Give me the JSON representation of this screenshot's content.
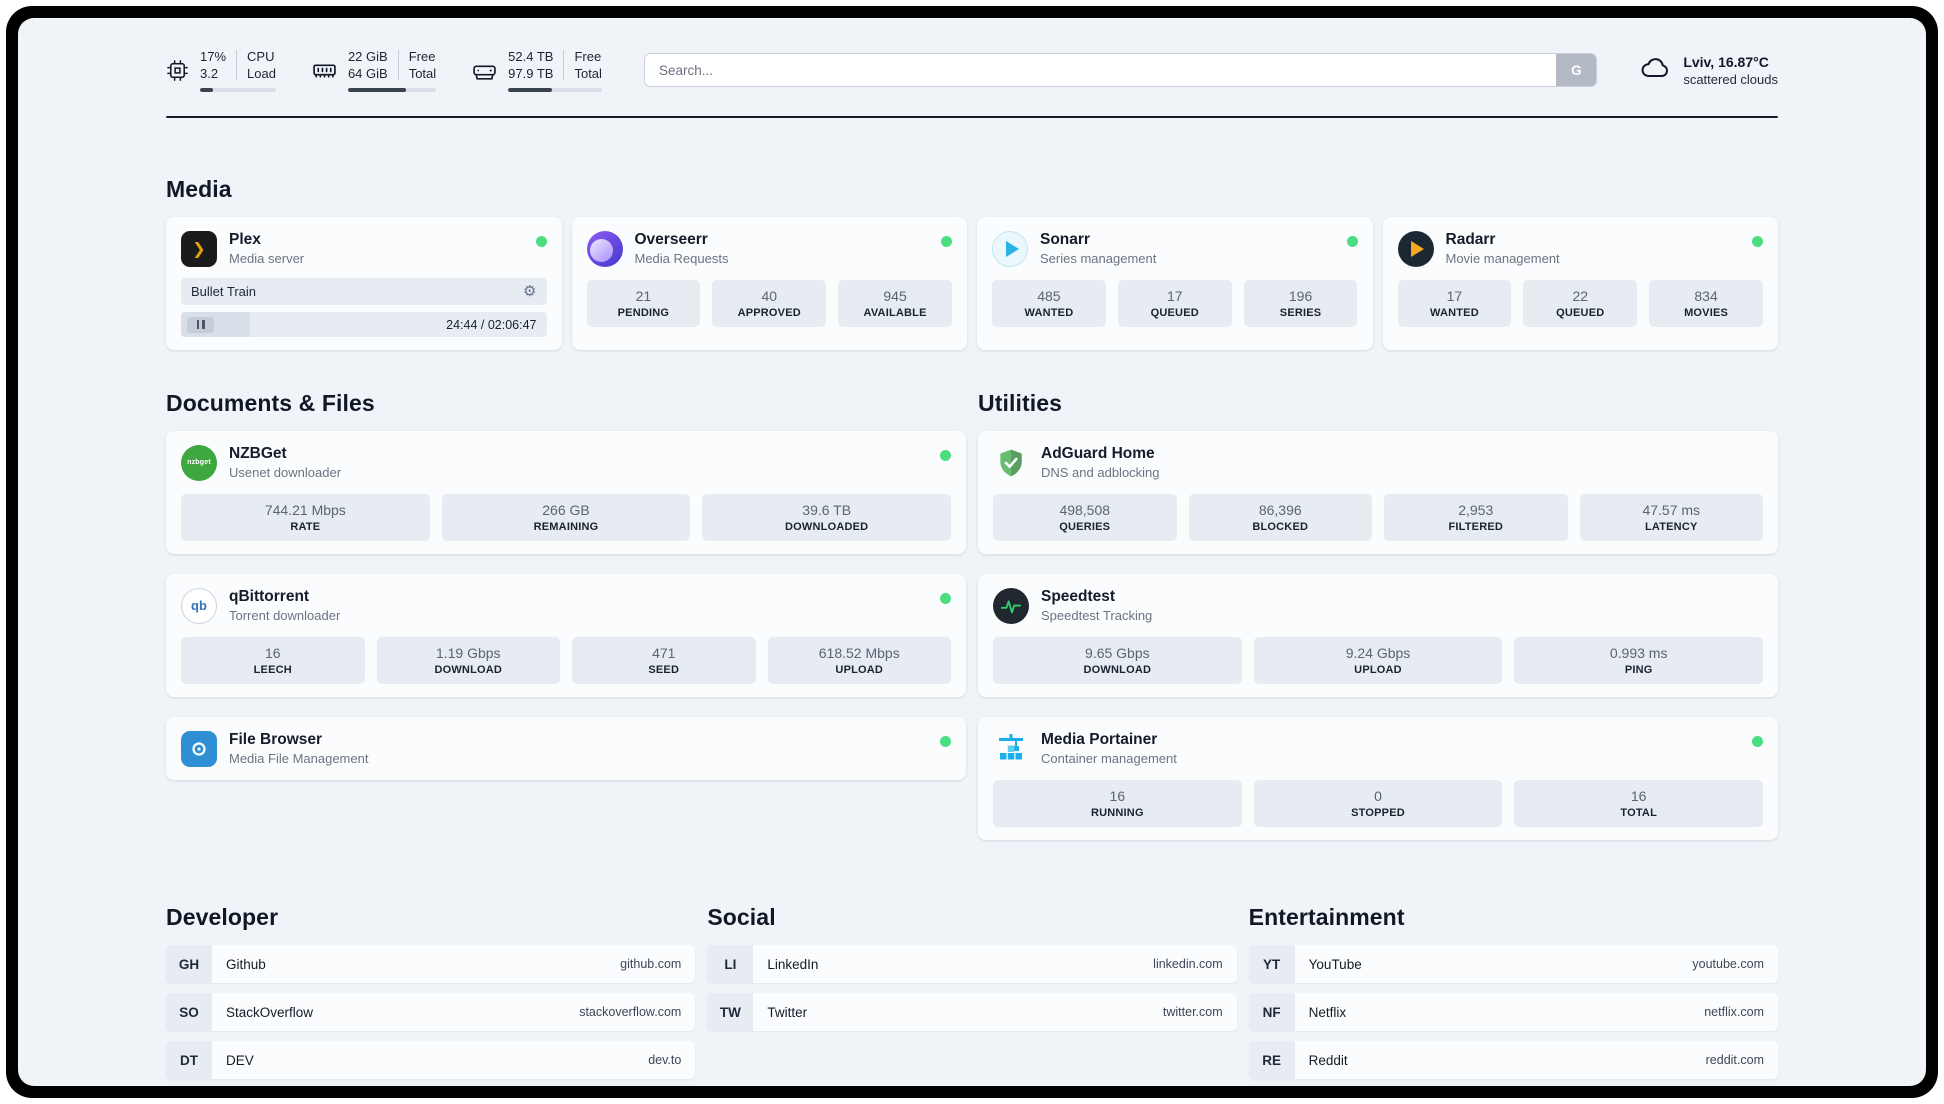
{
  "colors": {
    "online": "#4ade80"
  },
  "icons": {
    "plex_glyph": "❯",
    "gear_glyph": "⚙",
    "nzbget_glyph": "nzbget",
    "qbittorrent_glyph": "qb"
  },
  "header": {
    "cpu": {
      "value_top": "17%",
      "value_bottom": "3.2",
      "label_top": "CPU",
      "label_bottom": "Load",
      "progress_pct": 17
    },
    "ram": {
      "value_top": "22 GiB",
      "value_bottom": "64 GiB",
      "label_top": "Free",
      "label_bottom": "Total",
      "progress_pct": 66
    },
    "disk": {
      "value_top": "52.4 TB",
      "value_bottom": "97.9 TB",
      "label_top": "Free",
      "label_bottom": "Total",
      "progress_pct": 47
    },
    "search": {
      "placeholder": "Search...",
      "button_label": "G"
    },
    "weather": {
      "location": "Lviv, 16.87°C",
      "condition": "scattered clouds"
    }
  },
  "sections": {
    "media": {
      "title": "Media",
      "apps": [
        {
          "name": "Plex",
          "subtitle": "Media server",
          "player": {
            "track_title": "Bullet Train",
            "time": "24:44 / 02:06:47",
            "progress_pct": 19
          }
        },
        {
          "name": "Overseerr",
          "subtitle": "Media Requests",
          "stats": [
            {
              "value": "21",
              "label": "PENDING"
            },
            {
              "value": "40",
              "label": "APPROVED"
            },
            {
              "value": "945",
              "label": "AVAILABLE"
            }
          ]
        },
        {
          "name": "Sonarr",
          "subtitle": "Series management",
          "stats": [
            {
              "value": "485",
              "label": "WANTED"
            },
            {
              "value": "17",
              "label": "QUEUED"
            },
            {
              "value": "196",
              "label": "SERIES"
            }
          ]
        },
        {
          "name": "Radarr",
          "subtitle": "Movie management",
          "stats": [
            {
              "value": "17",
              "label": "WANTED"
            },
            {
              "value": "22",
              "label": "QUEUED"
            },
            {
              "value": "834",
              "label": "MOVIES"
            }
          ]
        }
      ]
    },
    "documents": {
      "title": "Documents & Files",
      "apps": [
        {
          "name": "NZBGet",
          "subtitle": "Usenet downloader",
          "stats": [
            {
              "value": "744.21 Mbps",
              "label": "RATE"
            },
            {
              "value": "266 GB",
              "label": "REMAINING"
            },
            {
              "value": "39.6 TB",
              "label": "DOWNLOADED"
            }
          ]
        },
        {
          "name": "qBittorrent",
          "subtitle": "Torrent downloader",
          "stats": [
            {
              "value": "16",
              "label": "LEECH"
            },
            {
              "value": "1.19 Gbps",
              "label": "DOWNLOAD"
            },
            {
              "value": "471",
              "label": "SEED"
            },
            {
              "value": "618.52 Mbps",
              "label": "UPLOAD"
            }
          ]
        },
        {
          "name": "File Browser",
          "subtitle": "Media File Management"
        }
      ]
    },
    "utilities": {
      "title": "Utilities",
      "apps": [
        {
          "name": "AdGuard Home",
          "subtitle": "DNS and adblocking",
          "stats": [
            {
              "value": "498,508",
              "label": "QUERIES"
            },
            {
              "value": "86,396",
              "label": "BLOCKED"
            },
            {
              "value": "2,953",
              "label": "FILTERED"
            },
            {
              "value": "47.57 ms",
              "label": "LATENCY"
            }
          ]
        },
        {
          "name": "Speedtest",
          "subtitle": "Speedtest Tracking",
          "stats": [
            {
              "value": "9.65 Gbps",
              "label": "DOWNLOAD"
            },
            {
              "value": "9.24 Gbps",
              "label": "UPLOAD"
            },
            {
              "value": "0.993 ms",
              "label": "PING"
            }
          ]
        },
        {
          "name": "Media Portainer",
          "subtitle": "Container management",
          "stats": [
            {
              "value": "16",
              "label": "RUNNING"
            },
            {
              "value": "0",
              "label": "STOPPED"
            },
            {
              "value": "16",
              "label": "TOTAL"
            }
          ]
        }
      ]
    },
    "bookmarks": {
      "groups": [
        {
          "title": "Developer",
          "items": [
            {
              "abbr": "GH",
              "name": "Github",
              "url": "github.com"
            },
            {
              "abbr": "SO",
              "name": "StackOverflow",
              "url": "stackoverflow.com"
            },
            {
              "abbr": "DT",
              "name": "DEV",
              "url": "dev.to"
            }
          ]
        },
        {
          "title": "Social",
          "items": [
            {
              "abbr": "LI",
              "name": "LinkedIn",
              "url": "linkedin.com"
            },
            {
              "abbr": "TW",
              "name": "Twitter",
              "url": "twitter.com"
            }
          ]
        },
        {
          "title": "Entertainment",
          "items": [
            {
              "abbr": "YT",
              "name": "YouTube",
              "url": "youtube.com"
            },
            {
              "abbr": "NF",
              "name": "Netflix",
              "url": "netflix.com"
            },
            {
              "abbr": "RE",
              "name": "Reddit",
              "url": "reddit.com"
            }
          ]
        }
      ]
    }
  }
}
